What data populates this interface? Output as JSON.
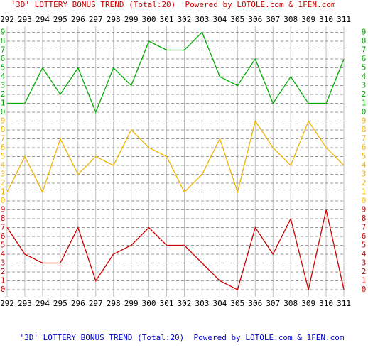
{
  "chart_data": {
    "type": "line",
    "title": "'3D' LOTTERY BONUS TREND (Total:20)  Powered by LOTOLE.com & 1FEN.com",
    "footer": "'3D' LOTTERY BONUS TREND (Total:20)  Powered by LOTOLE.com & 1FEN.com",
    "categories": [
      "292",
      "293",
      "294",
      "295",
      "296",
      "297",
      "298",
      "299",
      "300",
      "301",
      "302",
      "303",
      "304",
      "305",
      "306",
      "307",
      "308",
      "309",
      "310",
      "311"
    ],
    "ylim": [
      0,
      9
    ],
    "yticks": [
      0,
      1,
      2,
      3,
      4,
      5,
      6,
      7,
      8,
      9
    ],
    "grid": true,
    "series": [
      {
        "color": "#00aa00",
        "values": [
          1,
          1,
          5,
          2,
          5,
          0,
          5,
          3,
          8,
          7,
          7,
          9,
          4,
          3,
          6,
          1,
          4,
          1,
          1,
          6
        ]
      },
      {
        "color": "#f0b400",
        "values": [
          1,
          5,
          1,
          7,
          3,
          5,
          4,
          8,
          6,
          5,
          1,
          3,
          7,
          1,
          9,
          6,
          4,
          9,
          6,
          4
        ]
      },
      {
        "color": "#cc0000",
        "values": [
          7,
          4,
          3,
          3,
          7,
          1,
          4,
          5,
          7,
          5,
          5,
          3,
          1,
          0,
          7,
          4,
          8,
          0,
          9,
          0
        ]
      }
    ]
  }
}
